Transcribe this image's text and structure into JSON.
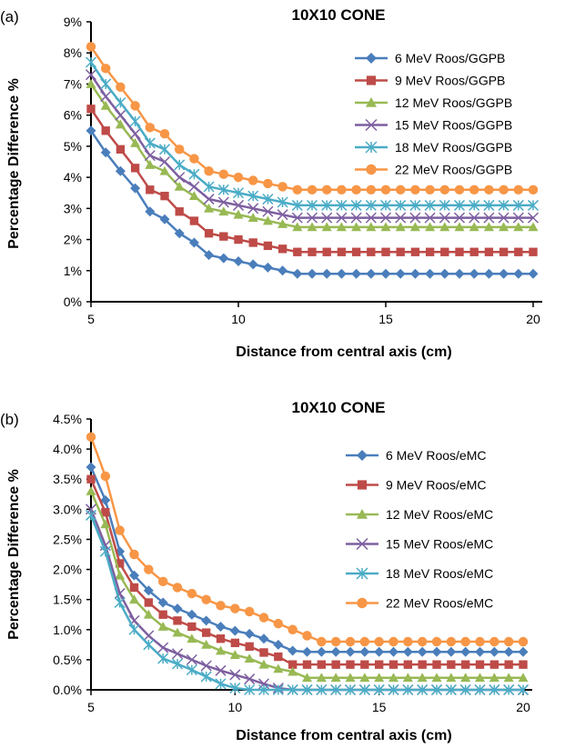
{
  "chart_data": [
    {
      "panel_label": "(a)",
      "type": "line",
      "title": "10X10 CONE",
      "xlabel": "Distance from central axis (cm)",
      "ylabel": "Percentage Difference %",
      "xlim": [
        5,
        20
      ],
      "ylim": [
        0,
        9
      ],
      "xticks": [
        5,
        10,
        15,
        20
      ],
      "yticks": [
        "0%",
        "1%",
        "2%",
        "3%",
        "4%",
        "5%",
        "6%",
        "7%",
        "8%",
        "9%"
      ],
      "ystep": 1,
      "grid": false,
      "legend": "top-right",
      "x": [
        5,
        5.5,
        6,
        6.5,
        7,
        7.5,
        8,
        8.5,
        9,
        9.5,
        10,
        10.5,
        11,
        11.5,
        12,
        12.5,
        13,
        13.5,
        14,
        14.5,
        15,
        15.5,
        16,
        16.5,
        17,
        17.5,
        18,
        18.5,
        19,
        19.5,
        20
      ],
      "series": [
        {
          "name": "6 MeV  Roos/GGPB",
          "color": "#4a7ebb",
          "marker": "diamond",
          "values": [
            5.5,
            4.8,
            4.2,
            3.65,
            2.9,
            2.65,
            2.2,
            1.9,
            1.5,
            1.4,
            1.3,
            1.2,
            1.1,
            1.0,
            0.9,
            0.9,
            0.9,
            0.9,
            0.9,
            0.9,
            0.9,
            0.9,
            0.9,
            0.9,
            0.9,
            0.9,
            0.9,
            0.9,
            0.9,
            0.9,
            0.9
          ]
        },
        {
          "name": "9 MeV  Roos/GGPB",
          "color": "#be4b48",
          "marker": "square",
          "values": [
            6.2,
            5.5,
            4.9,
            4.3,
            3.6,
            3.4,
            2.9,
            2.6,
            2.2,
            2.1,
            2.0,
            1.9,
            1.8,
            1.7,
            1.6,
            1.6,
            1.6,
            1.6,
            1.6,
            1.6,
            1.6,
            1.6,
            1.6,
            1.6,
            1.6,
            1.6,
            1.6,
            1.6,
            1.6,
            1.6,
            1.6
          ]
        },
        {
          "name": "12 MeV  Roos/GGPB",
          "color": "#98b954",
          "marker": "triangle",
          "values": [
            7.0,
            6.3,
            5.7,
            5.1,
            4.4,
            4.2,
            3.7,
            3.4,
            3.0,
            2.9,
            2.8,
            2.7,
            2.6,
            2.5,
            2.4,
            2.4,
            2.4,
            2.4,
            2.4,
            2.4,
            2.4,
            2.4,
            2.4,
            2.4,
            2.4,
            2.4,
            2.4,
            2.4,
            2.4,
            2.4,
            2.4
          ]
        },
        {
          "name": "15 MeV Roos/GGPB",
          "color": "#7d5fa0",
          "marker": "x",
          "values": [
            7.3,
            6.6,
            6.0,
            5.4,
            4.7,
            4.5,
            4.0,
            3.7,
            3.3,
            3.2,
            3.1,
            3.0,
            2.9,
            2.8,
            2.7,
            2.7,
            2.7,
            2.7,
            2.7,
            2.7,
            2.7,
            2.7,
            2.7,
            2.7,
            2.7,
            2.7,
            2.7,
            2.7,
            2.7,
            2.7,
            2.7
          ]
        },
        {
          "name": "18 MeV  Roos/GGPB",
          "color": "#4bacc6",
          "marker": "asterisk",
          "values": [
            7.7,
            7.0,
            6.4,
            5.8,
            5.1,
            4.9,
            4.4,
            4.1,
            3.7,
            3.6,
            3.5,
            3.4,
            3.3,
            3.2,
            3.1,
            3.1,
            3.1,
            3.1,
            3.1,
            3.1,
            3.1,
            3.1,
            3.1,
            3.1,
            3.1,
            3.1,
            3.1,
            3.1,
            3.1,
            3.1,
            3.1
          ]
        },
        {
          "name": "22 MeV  Roos/GGPB",
          "color": "#f79646",
          "marker": "circle",
          "values": [
            8.2,
            7.5,
            6.9,
            6.3,
            5.6,
            5.4,
            4.9,
            4.6,
            4.2,
            4.1,
            4.0,
            3.9,
            3.8,
            3.7,
            3.6,
            3.6,
            3.6,
            3.6,
            3.6,
            3.6,
            3.6,
            3.6,
            3.6,
            3.6,
            3.6,
            3.6,
            3.6,
            3.6,
            3.6,
            3.6,
            3.6
          ]
        }
      ]
    },
    {
      "panel_label": "(b)",
      "type": "line",
      "title": "10X10 CONE",
      "xlabel": "Distance from central axis (cm)",
      "ylabel": "Percentage Difference %",
      "xlim": [
        5,
        20
      ],
      "ylim": [
        0,
        4.5
      ],
      "xticks": [
        5,
        10,
        15,
        20
      ],
      "yticks": [
        "0.0%",
        "0.5%",
        "1.0%",
        "1.5%",
        "2.0%",
        "2.5%",
        "3.0%",
        "3.5%",
        "4.0%",
        "4.5%"
      ],
      "ystep": 0.5,
      "grid": false,
      "legend": "right",
      "x": [
        5,
        5.5,
        6,
        6.5,
        7,
        7.5,
        8,
        8.5,
        9,
        9.5,
        10,
        10.5,
        11,
        11.5,
        12,
        12.5,
        13,
        13.5,
        14,
        14.5,
        15,
        15.5,
        16,
        16.5,
        17,
        17.5,
        18,
        18.5,
        19,
        19.5,
        20
      ],
      "series": [
        {
          "name": "6 MeV Roos/eMC",
          "color": "#4a7ebb",
          "marker": "diamond",
          "values": [
            3.7,
            3.15,
            2.3,
            1.9,
            1.65,
            1.45,
            1.35,
            1.25,
            1.15,
            1.05,
            0.98,
            0.93,
            0.85,
            0.75,
            0.65,
            0.63,
            0.63,
            0.63,
            0.63,
            0.63,
            0.63,
            0.63,
            0.63,
            0.63,
            0.63,
            0.63,
            0.63,
            0.63,
            0.63,
            0.63,
            0.63
          ]
        },
        {
          "name": "9 MeV Roos/eMC",
          "color": "#be4b48",
          "marker": "square",
          "values": [
            3.5,
            2.95,
            2.1,
            1.7,
            1.45,
            1.25,
            1.15,
            1.05,
            0.95,
            0.85,
            0.78,
            0.72,
            0.62,
            0.55,
            0.42,
            0.42,
            0.42,
            0.42,
            0.42,
            0.42,
            0.42,
            0.42,
            0.42,
            0.42,
            0.42,
            0.42,
            0.42,
            0.42,
            0.42,
            0.42,
            0.42
          ]
        },
        {
          "name": "12 MeV Roos/eMC",
          "color": "#98b954",
          "marker": "triangle",
          "values": [
            3.3,
            2.75,
            1.9,
            1.5,
            1.25,
            1.05,
            0.95,
            0.85,
            0.75,
            0.65,
            0.58,
            0.52,
            0.42,
            0.35,
            0.3,
            0.2,
            0.2,
            0.2,
            0.2,
            0.2,
            0.2,
            0.2,
            0.2,
            0.2,
            0.2,
            0.2,
            0.2,
            0.2,
            0.2,
            0.2,
            0.2
          ]
        },
        {
          "name": "15 MeV Roos/eMC",
          "color": "#7d5fa0",
          "marker": "x",
          "values": [
            3.0,
            2.4,
            1.6,
            1.15,
            0.9,
            0.7,
            0.6,
            0.5,
            0.4,
            0.32,
            0.25,
            0.18,
            0.1,
            0.03,
            0,
            0,
            0,
            0,
            0,
            0,
            0,
            0,
            0,
            0,
            0,
            0,
            0,
            0,
            0,
            0,
            0
          ]
        },
        {
          "name": "18 MeV Roos/eMC",
          "color": "#4bacc6",
          "marker": "asterisk",
          "values": [
            2.9,
            2.3,
            1.45,
            1.0,
            0.75,
            0.52,
            0.43,
            0.33,
            0.22,
            0.1,
            0.03,
            0,
            0,
            0,
            0,
            0,
            0,
            0,
            0,
            0,
            0,
            0,
            0,
            0,
            0,
            0,
            0,
            0,
            0,
            0,
            0
          ]
        },
        {
          "name": "22 MeV Roos/eMC",
          "color": "#f79646",
          "marker": "circle",
          "values": [
            4.2,
            3.55,
            2.65,
            2.25,
            2.0,
            1.8,
            1.7,
            1.6,
            1.5,
            1.4,
            1.35,
            1.3,
            1.2,
            1.1,
            1.0,
            0.9,
            0.8,
            0.8,
            0.8,
            0.8,
            0.8,
            0.8,
            0.8,
            0.8,
            0.8,
            0.8,
            0.8,
            0.8,
            0.8,
            0.8,
            0.8
          ]
        }
      ]
    }
  ]
}
